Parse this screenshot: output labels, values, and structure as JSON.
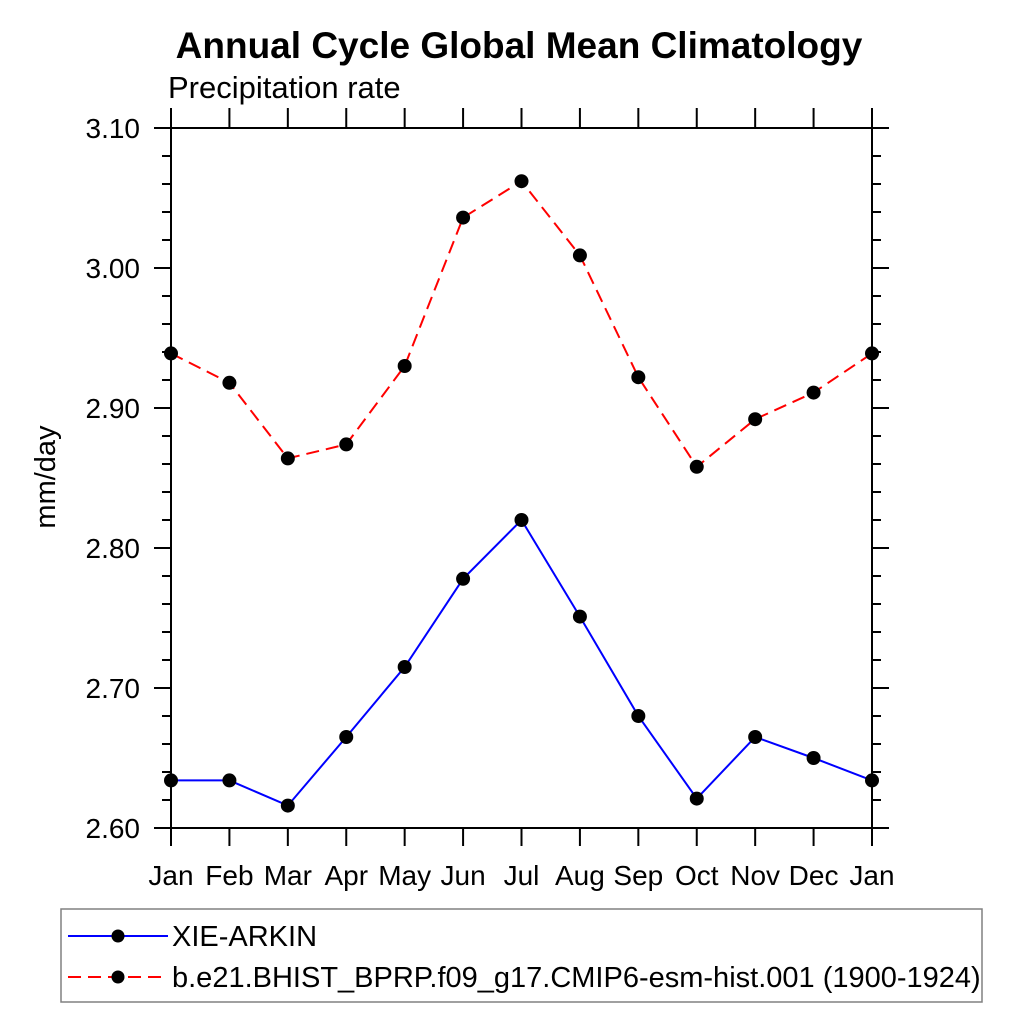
{
  "title": "Annual Cycle Global Mean Climatology",
  "subtitle": "Precipitation rate",
  "chart_data": {
    "type": "line",
    "title": "Annual Cycle Global Mean Climatology",
    "subtitle": "Precipitation rate",
    "ylabel": "mm/day",
    "xlabel": "",
    "categories": [
      "Jan",
      "Feb",
      "Mar",
      "Apr",
      "May",
      "Jun",
      "Jul",
      "Aug",
      "Sep",
      "Oct",
      "Nov",
      "Dec",
      "Jan"
    ],
    "series": [
      {
        "name": "XIE-ARKIN",
        "line_color": "#0000ff",
        "line_style": "solid",
        "marker": "filled-circle",
        "marker_color": "#000000",
        "values": [
          2.634,
          2.634,
          2.616,
          2.665,
          2.715,
          2.778,
          2.82,
          2.751,
          2.68,
          2.621,
          2.665,
          2.65,
          2.634
        ]
      },
      {
        "name": "b.e21.BHIST_BPRP.f09_g17.CMIP6-esm-hist.001 (1900-1924)",
        "line_color": "#ff0000",
        "line_style": "dashed",
        "marker": "filled-circle",
        "marker_color": "#000000",
        "values": [
          2.939,
          2.918,
          2.864,
          2.874,
          2.93,
          3.036,
          3.062,
          3.009,
          2.922,
          2.858,
          2.892,
          2.911,
          2.939
        ]
      }
    ],
    "ylim": [
      2.6,
      3.1
    ],
    "ytick_major_labels": [
      "3.10",
      "3.00",
      "2.90",
      "2.80",
      "2.70",
      "2.60"
    ],
    "ytick_major_values": [
      3.1,
      3.0,
      2.9,
      2.8,
      2.7,
      2.6
    ],
    "ytick_minor_step": 0.02,
    "grid": false,
    "axis_color": "#000000",
    "legend_position": "bottom-left-box"
  }
}
